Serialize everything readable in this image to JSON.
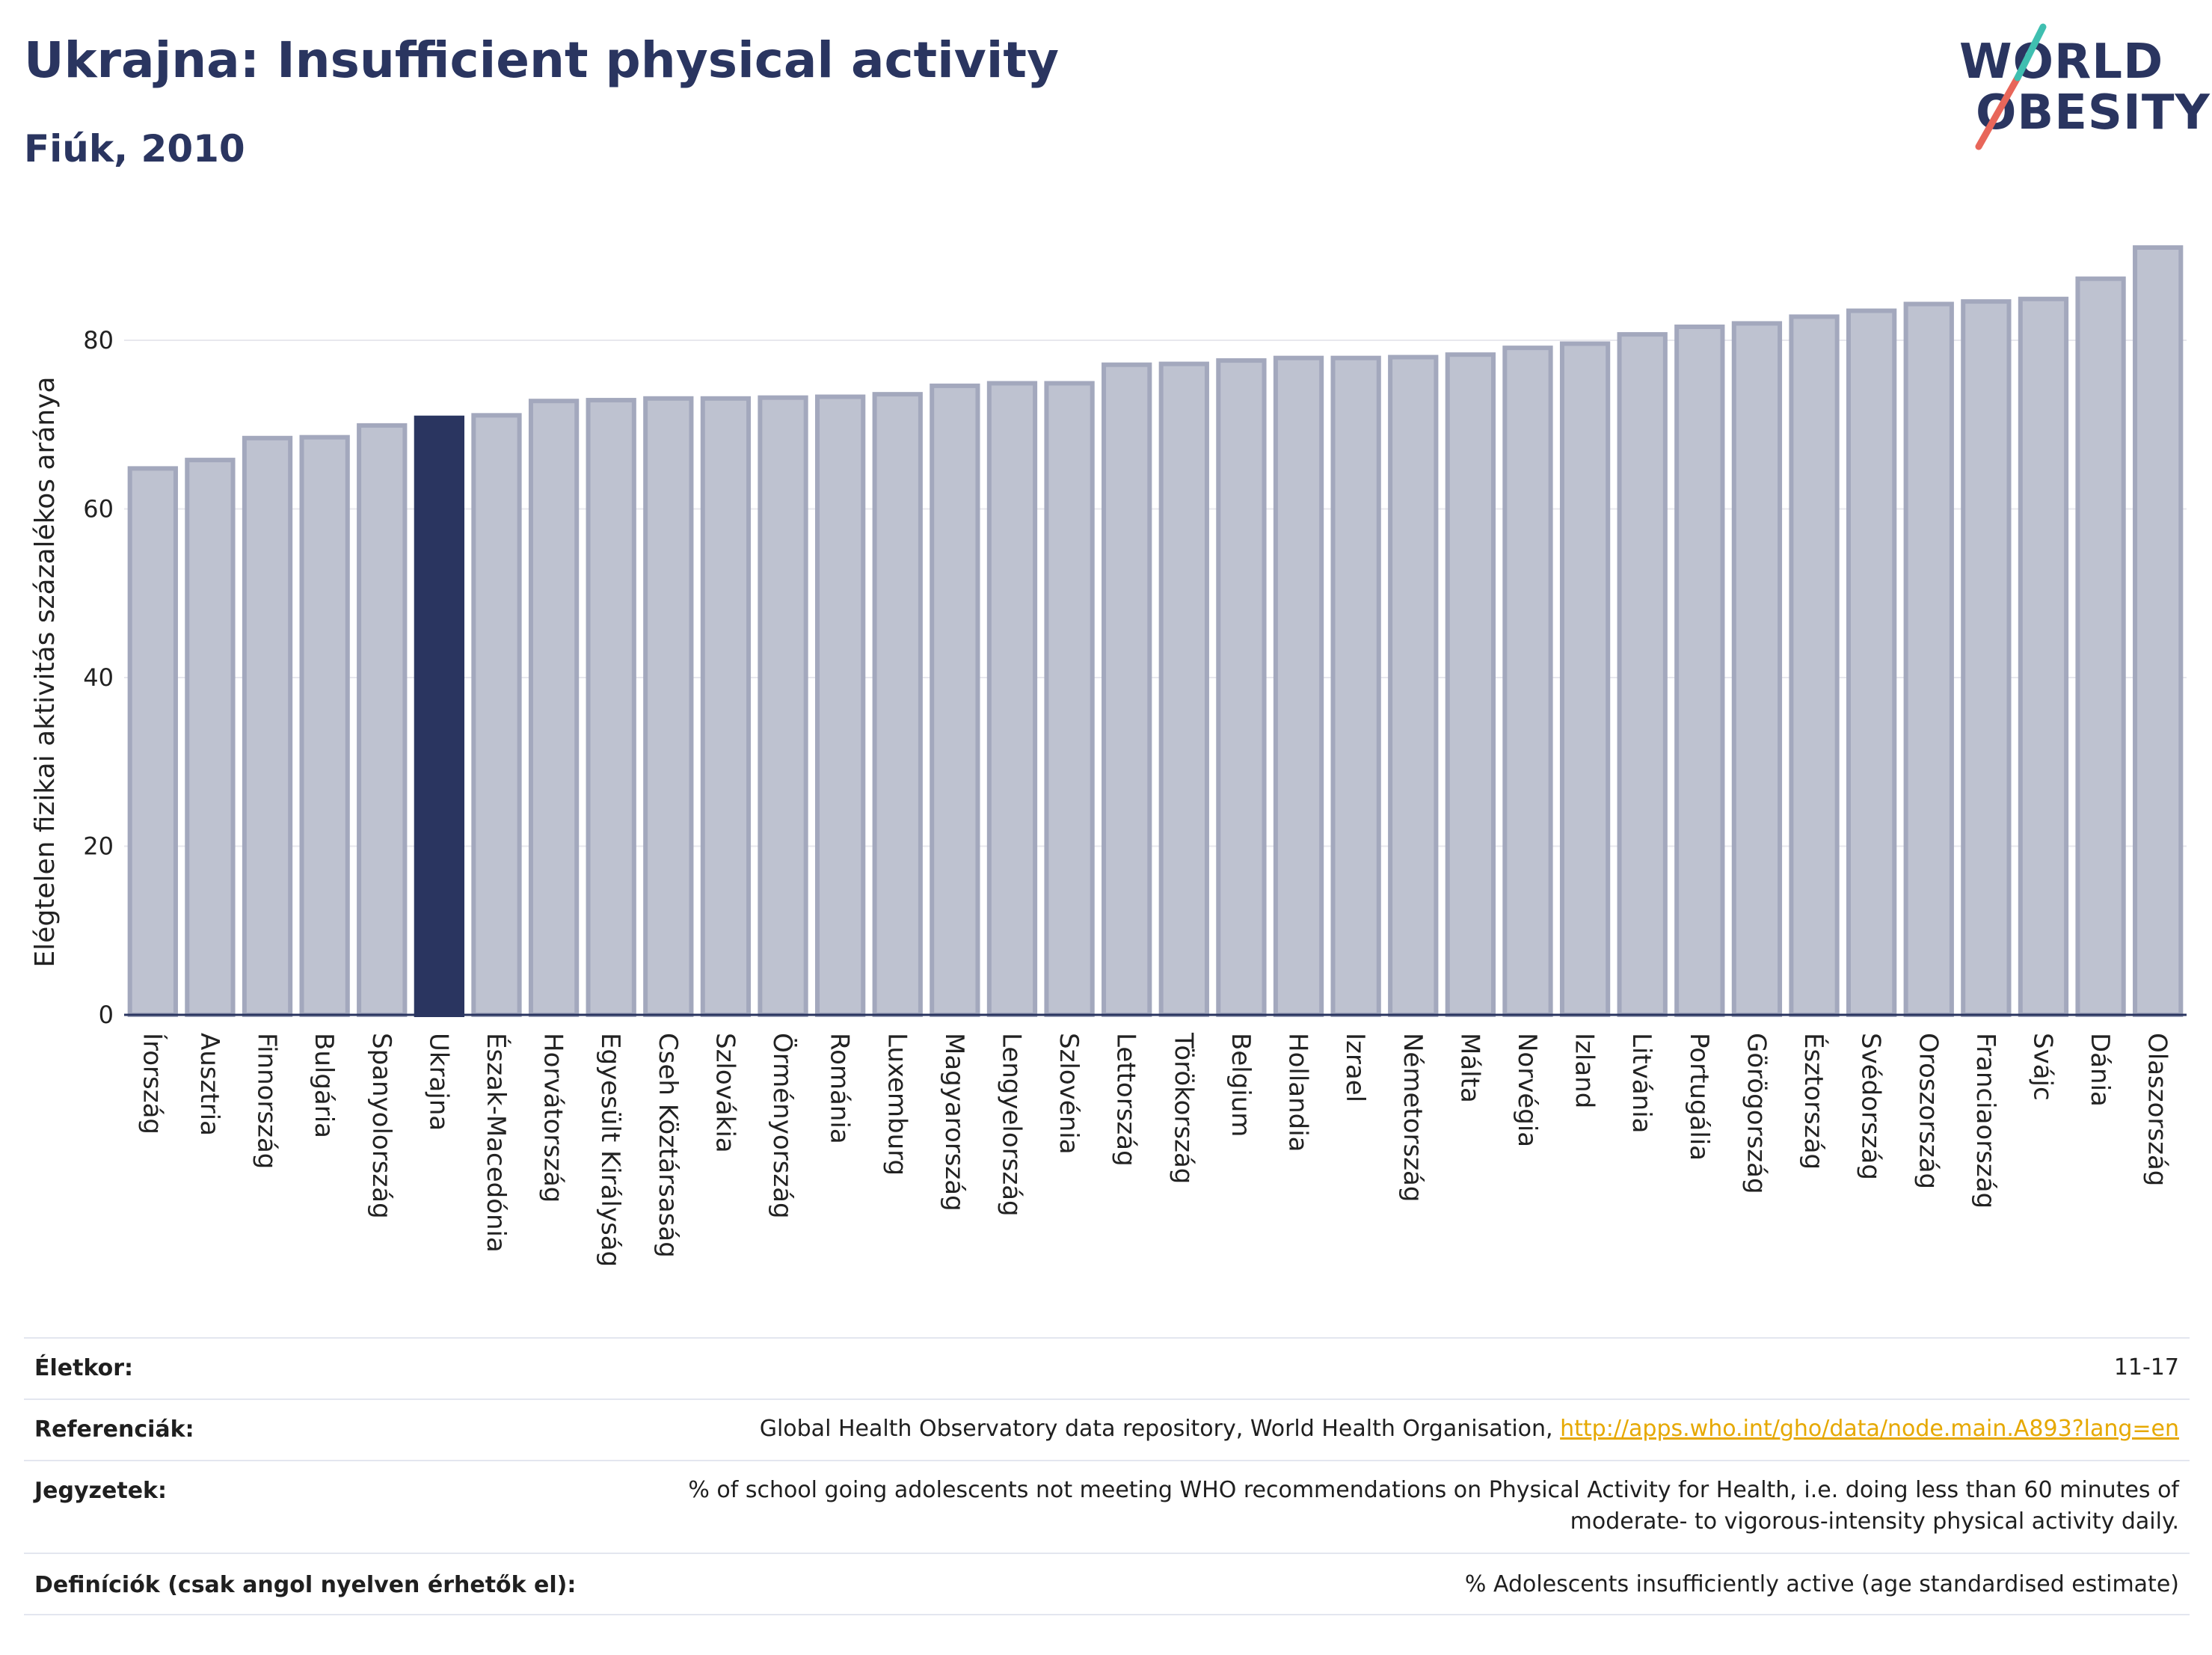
{
  "title": "Ukrajna: Insufficient physical activity",
  "subtitle": "Fiúk, 2010",
  "logo": {
    "line1": "WORLD",
    "line2": "OBESITY",
    "colors": {
      "text": "#2a3560",
      "teal": "#3fbfb0",
      "coral": "#e8665a"
    }
  },
  "colors": {
    "highlight": "#2a3560",
    "bar_fill": "#bec2d0",
    "bar_stroke": "#a3a8bd",
    "grid": "#e8e8ee",
    "axis": "#2a3560"
  },
  "chart_data": {
    "type": "bar",
    "title": "",
    "ylabel": "Elégtelen fizikai aktivitás százalékos aránya",
    "xlabel": "",
    "ylim": [
      0,
      92
    ],
    "yticks": [
      0,
      20,
      40,
      60,
      80
    ],
    "highlight": "Ukrajna",
    "categories": [
      "Írország",
      "Ausztria",
      "Finnország",
      "Bulgária",
      "Spanyolország",
      "Ukrajna",
      "Észak-Macedónia",
      "Horvátország",
      "Egyesült Királyság",
      "Cseh Köztársaság",
      "Szlovákia",
      "Örményország",
      "Románia",
      "Luxemburg",
      "Magyarország",
      "Lengyelország",
      "Szlovénia",
      "Lettország",
      "Törökország",
      "Belgium",
      "Hollandia",
      "Izrael",
      "Németország",
      "Málta",
      "Norvégia",
      "Izland",
      "Litvánia",
      "Portugália",
      "Görögország",
      "Észtország",
      "Svédország",
      "Oroszország",
      "Franciaország",
      "Svájc",
      "Dánia",
      "Olaszország"
    ],
    "values": [
      64.8,
      65.8,
      68.4,
      68.5,
      69.9,
      70.8,
      71.1,
      72.8,
      72.9,
      73.1,
      73.1,
      73.2,
      73.3,
      73.6,
      74.6,
      74.9,
      74.9,
      77.1,
      77.2,
      77.6,
      77.9,
      77.9,
      78.0,
      78.3,
      79.1,
      79.6,
      80.7,
      81.6,
      82.0,
      82.8,
      83.5,
      84.3,
      84.6,
      84.9,
      87.3,
      91.0
    ]
  },
  "meta": [
    {
      "label": "Életkor:",
      "value": "11-17"
    },
    {
      "label": "Referenciák:",
      "value": "Global Health Observatory data repository, World Health Organisation,",
      "link": "http://apps.who.int/gho/data/node.main.A893?lang=en"
    },
    {
      "label": "Jegyzetek:",
      "value": "% of school going adolescents not meeting WHO recommendations on Physical Activity for Health, i.e. doing less than 60 minutes of",
      "value2": "moderate- to vigorous-intensity physical activity daily."
    },
    {
      "label": "Definíciók (csak angol nyelven érhetők el):",
      "value": "% Adolescents insufficiently active (age standardised estimate)"
    }
  ]
}
